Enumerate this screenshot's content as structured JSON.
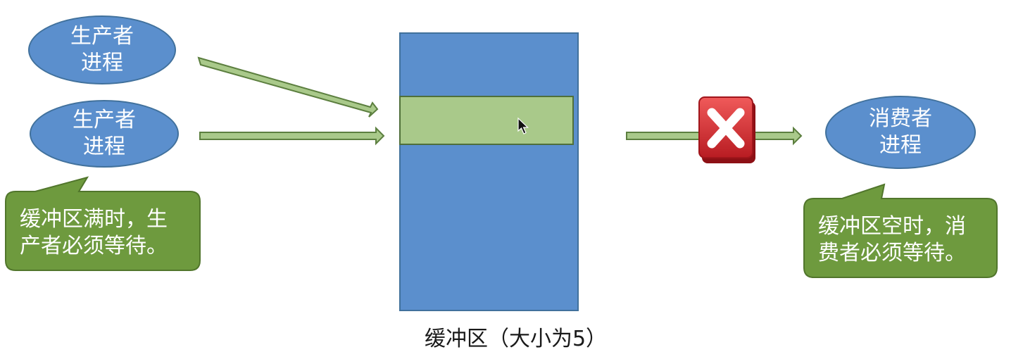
{
  "producers": [
    {
      "label": "生产者\n进程"
    },
    {
      "label": "生产者\n进程"
    }
  ],
  "consumer": {
    "label": "消费者\n进程"
  },
  "buffer": {
    "caption": "缓冲区（大小为5）"
  },
  "callouts": {
    "producer_wait": "缓冲区满时，生\n产者必须等待。",
    "consumer_wait": "缓冲区空时，消\n费者必须等待。"
  },
  "colors": {
    "process_fill": "#5b8fcd",
    "buffer_fill": "#5b8fcd",
    "slot_fill": "#a9c98a",
    "arrow_fill": "#a9c98a",
    "callout_fill": "#6e9a3e",
    "blocked_icon": "#d8262b"
  },
  "icons": {
    "blocked": "red-x-icon",
    "pointer": "mouse-cursor-icon"
  }
}
